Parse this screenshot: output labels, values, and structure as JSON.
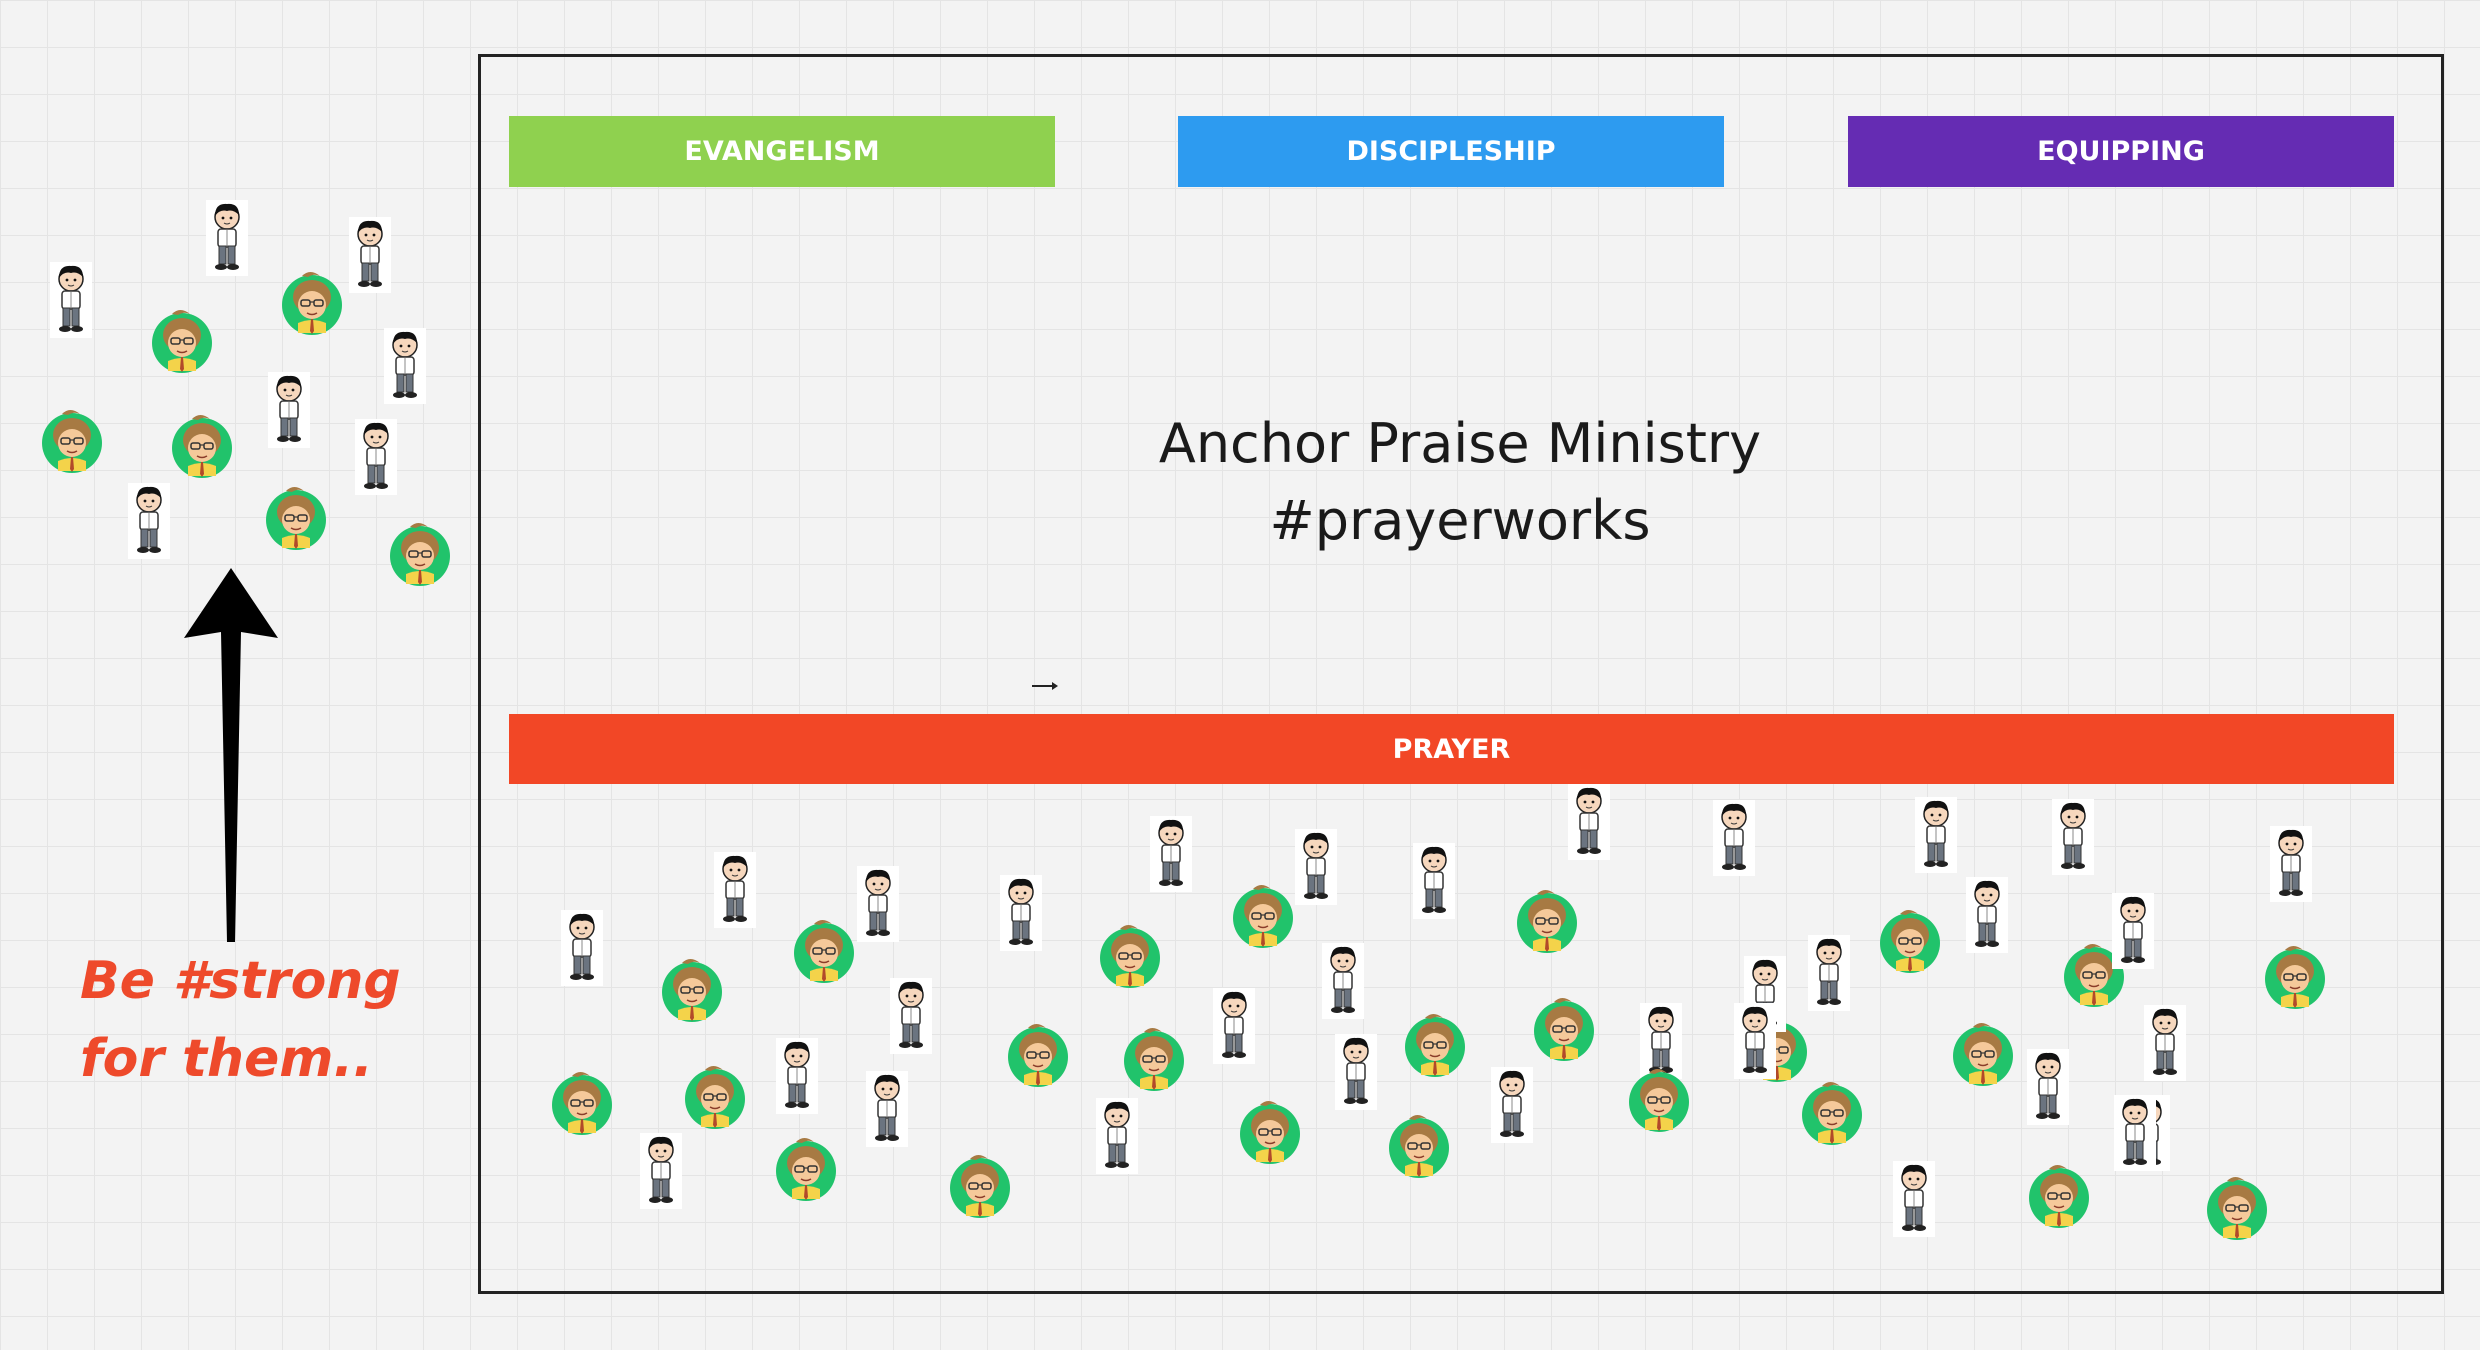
{
  "board": {
    "categories": {
      "evangelism": "EVANGELISM",
      "discipleship": "DISCIPLESHIP",
      "equipping": "EQUIPPING",
      "prayer": "PRAYER"
    },
    "title_line1": "Anchor Praise Ministry",
    "title_line2": "#prayerworks",
    "caption_line1": "Be #strong",
    "caption_line2": "for them.."
  },
  "colors": {
    "evangelism": "#8fd14f",
    "discipleship": "#2d9bf0",
    "equipping": "#652cb3",
    "prayer": "#f24726",
    "caption": "#ee4a2b",
    "frame": "#222222",
    "arrow": "#000000"
  },
  "icons": {
    "avatar_types": [
      "boy-sticker-icon",
      "woman-avatar-icon"
    ],
    "arrow": "up-arrow-icon"
  }
}
